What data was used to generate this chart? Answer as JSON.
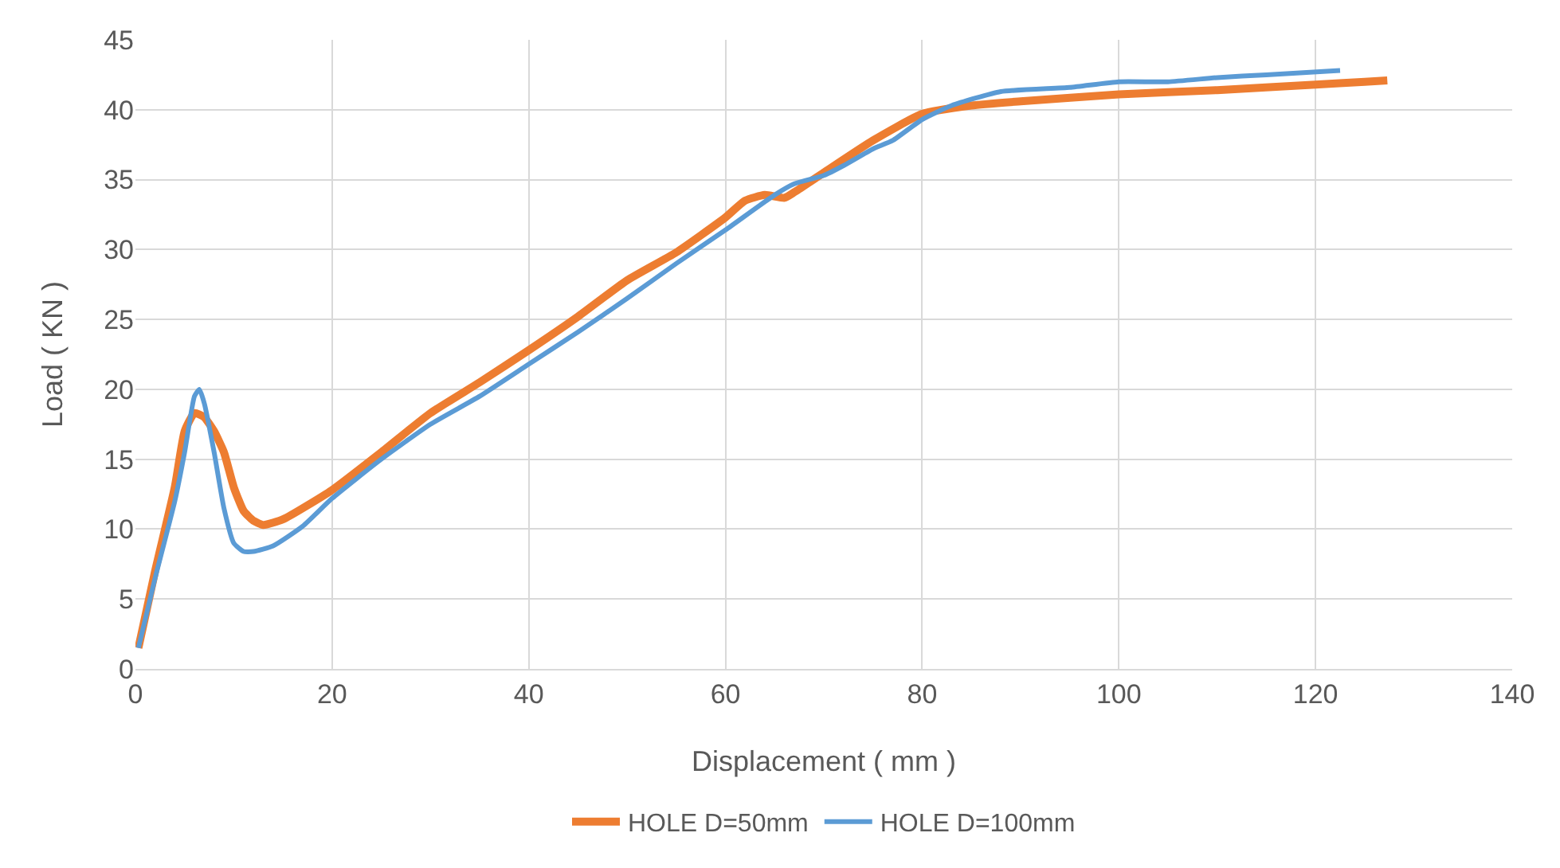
{
  "chart_data": {
    "type": "line",
    "xlabel": "Displacement ( mm )",
    "ylabel": "Load ( KN )",
    "xlim": [
      0,
      140
    ],
    "xticks": [
      0,
      20,
      40,
      60,
      80,
      100,
      120,
      140
    ],
    "ylim": [
      0,
      45
    ],
    "yticks": [
      0,
      5,
      10,
      15,
      20,
      25,
      30,
      35,
      40,
      45
    ],
    "grid": true,
    "legend": "bottom",
    "marker": "none",
    "line_style": "solid",
    "series": [
      {
        "name": "HOLE D=50mm",
        "color": "#ed7d31",
        "x": [
          0.3,
          2,
          4,
          5,
          6,
          7,
          8,
          9,
          10,
          11,
          12,
          13,
          15,
          20,
          25,
          30,
          35,
          40,
          45,
          50,
          55,
          60,
          62,
          64,
          66,
          67,
          70,
          75,
          80,
          85,
          90,
          100,
          110,
          120,
          125,
          127.3
        ],
        "values": [
          1.5,
          7,
          13,
          17,
          18.3,
          18,
          17,
          15.5,
          13,
          11.3,
          10.6,
          10.3,
          10.7,
          12.8,
          15.5,
          18.3,
          20.5,
          22.8,
          25.2,
          27.8,
          29.8,
          32.3,
          33.5,
          33.9,
          33.7,
          34.1,
          35.5,
          37.8,
          39.7,
          40.3,
          40.6,
          41.1,
          41.4,
          41.8,
          42,
          42.1
        ]
      },
      {
        "name": "HOLE D=100mm",
        "color": "#5b9bd5",
        "x": [
          0.3,
          2,
          4,
          5,
          6,
          6.5,
          7,
          8,
          9,
          10,
          11,
          12,
          14,
          17,
          20,
          25,
          30,
          35,
          40,
          45,
          50,
          55,
          60,
          65,
          67,
          70,
          72,
          75,
          77,
          80,
          83,
          88,
          95,
          100,
          105,
          110,
          115,
          122.5
        ],
        "values": [
          1.5,
          6.5,
          12,
          15.5,
          19.5,
          20,
          19,
          15.5,
          11.5,
          9,
          8.4,
          8.4,
          8.8,
          10.2,
          12.2,
          15,
          17.5,
          19.5,
          21.8,
          24.1,
          26.5,
          29,
          31.4,
          33.9,
          34.7,
          35.3,
          36,
          37.2,
          37.8,
          39.3,
          40.3,
          41.3,
          41.6,
          42,
          42,
          42.3,
          42.5,
          42.8
        ]
      }
    ]
  }
}
